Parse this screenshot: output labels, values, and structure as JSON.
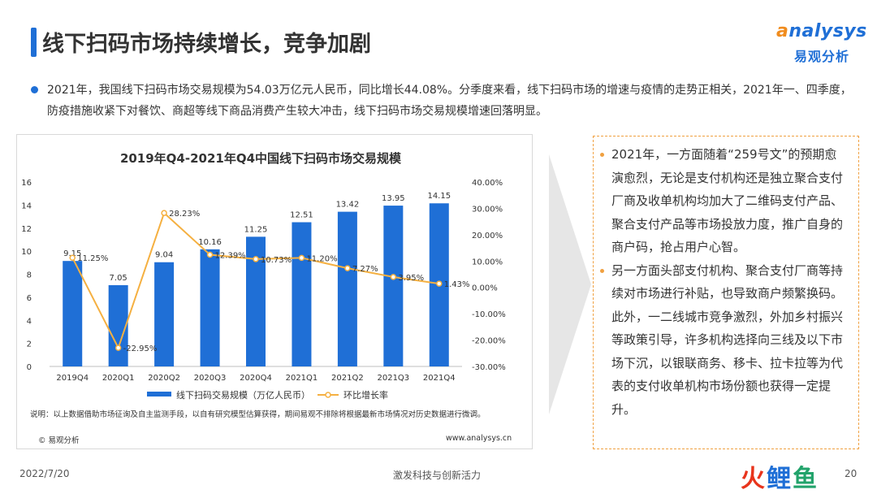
{
  "header": {
    "title": "线下扫码市场持续增长，竞争加剧",
    "logo_word_a": "a",
    "logo_word_rest": "nalysys",
    "logo_cn": "易观分析"
  },
  "intro": {
    "text": "2021年，我国线下扫码市场交易规模为54.03万亿元人民币，同比增长44.08%。分季度来看，线下扫码市场的增速与疫情的走势正相关，2021年一、四季度，防疫措施收紧下对餐饮、商超等线下商品消费产生较大冲击，线下扫码市场交易规模增速回落明显。"
  },
  "chart_data": {
    "type": "bar",
    "title": "2019年Q4-2021年Q4中国线下扫码市场交易规模",
    "categories": [
      "2019Q4",
      "2020Q1",
      "2020Q2",
      "2020Q3",
      "2020Q4",
      "2021Q1",
      "2021Q2",
      "2021Q3",
      "2021Q4"
    ],
    "series": [
      {
        "name": "线下扫码交易规模（万亿人民币）",
        "type": "bar",
        "axis": "left",
        "values": [
          9.15,
          7.05,
          9.04,
          10.16,
          11.25,
          12.51,
          13.42,
          13.95,
          14.15
        ],
        "labels": [
          "9.15",
          "7.05",
          "9.04",
          "10.16",
          "11.25",
          "12.51",
          "13.42",
          "13.95",
          "14.15"
        ]
      },
      {
        "name": "环比增长率",
        "type": "line",
        "axis": "right",
        "values": [
          11.25,
          -22.95,
          28.23,
          12.39,
          10.73,
          11.2,
          7.27,
          3.95,
          1.43
        ],
        "labels": [
          "11.25%",
          "-22.95%",
          "28.23%",
          "12.39%",
          "10.73%",
          "11.20%",
          "7.27%",
          "3.95%",
          "1.43%"
        ]
      }
    ],
    "ylim": [
      0,
      16
    ],
    "yticks": [
      "0",
      "2",
      "4",
      "6",
      "8",
      "10",
      "12",
      "14",
      "16"
    ],
    "y2lim": [
      -30,
      40
    ],
    "y2ticks": [
      "-30.00%",
      "-20.00%",
      "-10.00%",
      "0.00%",
      "10.00%",
      "20.00%",
      "30.00%",
      "40.00%"
    ],
    "grid": false,
    "legend_position": "bottom",
    "colors": {
      "bar": "#1f6fd6",
      "line": "#f5b041"
    }
  },
  "chart_footer": {
    "note": "说明：以上数据借助市场征询及自主监测手段，以自有研究模型估算获得，期间易观不排除将根据最新市场情况对历史数据进行微调。",
    "copyright": "© 易观分析",
    "website": "www.analysys.cn"
  },
  "side_panel": {
    "items": [
      "2021年，一方面随着“259号文”的预期愈演愈烈，无论是支付机构还是独立聚合支付厂商及收单机构均加大了二维码支付产品、聚合支付产品等市场投放力度，推广自身的商户码，抢占用户心智。",
      "另一方面头部支付机构、聚合支付厂商等持续对市场进行补贴，也导致商户频繁换码。此外，一二线城市竞争激烈，外加乡村振兴等政策引导，许多机构选择向三线及以下市场下沉，以银联商务、移卡、拉卡拉等为代表的支付收单机构市场份额也获得一定提升。"
    ],
    "accent": "#f0a040"
  },
  "footer": {
    "date": "2022/7/20",
    "slogan": "激发科技与创新活力",
    "page": "20",
    "brand_huo": "火",
    "brand_li": "鲤",
    "brand_yu": "鱼"
  }
}
